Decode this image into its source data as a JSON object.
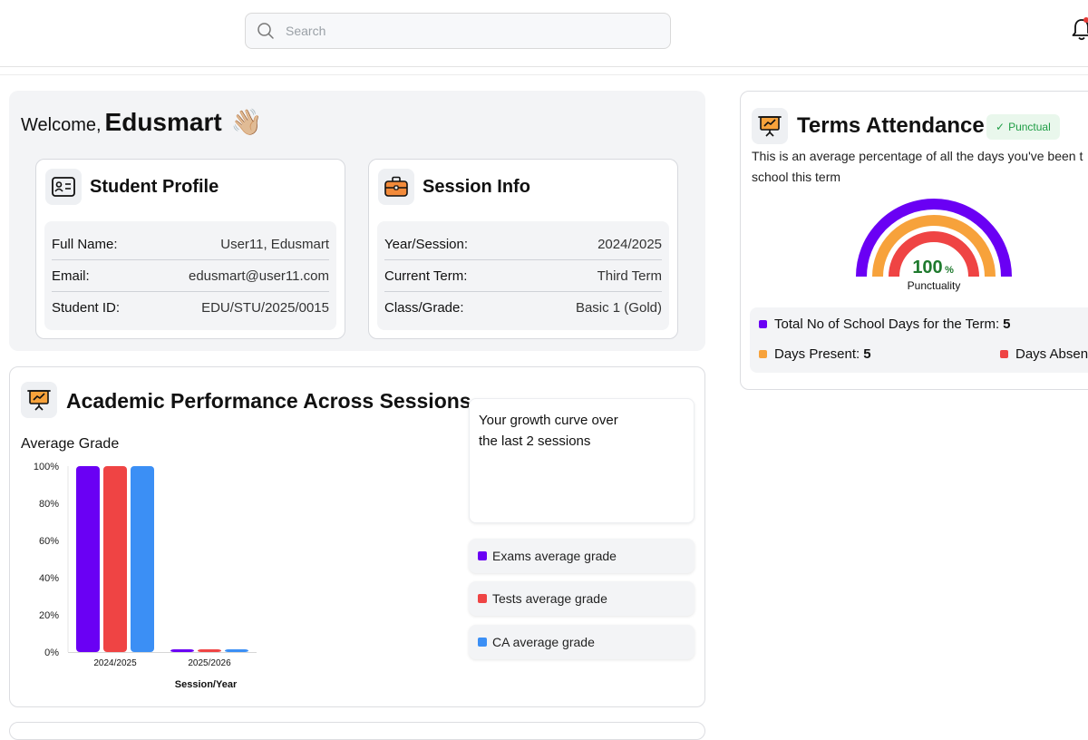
{
  "search": {
    "placeholder": "Search"
  },
  "welcome": {
    "greeting": "Welcome,",
    "name": "Edusmart",
    "emoji": "👋🏼"
  },
  "student_profile": {
    "title": "Student Profile",
    "rows": [
      {
        "label": "Full Name:",
        "value": "User11, Edusmart"
      },
      {
        "label": "Email:",
        "value": "edusmart@user11.com"
      },
      {
        "label": "Student ID:",
        "value": "EDU/STU/2025/0015"
      }
    ]
  },
  "session_info": {
    "title": "Session Info",
    "rows": [
      {
        "label": "Year/Session:",
        "value": "2024/2025"
      },
      {
        "label": "Current Term:",
        "value": "Third Term"
      },
      {
        "label": "Class/Grade:",
        "value": "Basic 1 (Gold)"
      }
    ]
  },
  "performance": {
    "title": "Academic Performance Across Sessions",
    "growth_text": "Your growth curve over the last 2 sessions",
    "legend": [
      {
        "label": "Exams average grade",
        "color": "#6a00f4"
      },
      {
        "label": "Tests average grade",
        "color": "#ef4444"
      },
      {
        "label": "CA average grade",
        "color": "#3b8ff5"
      }
    ]
  },
  "chart_data": {
    "type": "bar",
    "title": "Average Grade",
    "xlabel": "Session/Year",
    "ylabel": "",
    "categories": [
      "2024/2025",
      "2025/2026"
    ],
    "series": [
      {
        "name": "Exams average grade",
        "color": "#6a00f4",
        "values": [
          100,
          0
        ]
      },
      {
        "name": "Tests average grade",
        "color": "#ef4444",
        "values": [
          100,
          0
        ]
      },
      {
        "name": "CA average grade",
        "color": "#3b8ff5",
        "values": [
          100,
          0
        ]
      }
    ],
    "ylim": [
      0,
      100
    ],
    "yticks": [
      "0%",
      "20%",
      "40%",
      "60%",
      "80%",
      "100%"
    ],
    "grid": false
  },
  "attendance": {
    "title": "Terms Attendance",
    "badge": "Punctual",
    "description_line1": "This is an average percentage of all the days you've been t",
    "description_line2": "school this term",
    "gauge_value": "100",
    "gauge_unit": "%",
    "gauge_label": "Punctuality",
    "gauge_colors": [
      "#6a00f4",
      "#f7a23b",
      "#ef4444"
    ],
    "total_days_label": "Total No of School Days for the Term:",
    "total_days_value": "5",
    "present_label": "Days Present:",
    "present_value": "5",
    "absent_label": "Days Absen",
    "colors": {
      "total": "#6a00f4",
      "present": "#f7a23b",
      "absent": "#ef4444"
    }
  }
}
